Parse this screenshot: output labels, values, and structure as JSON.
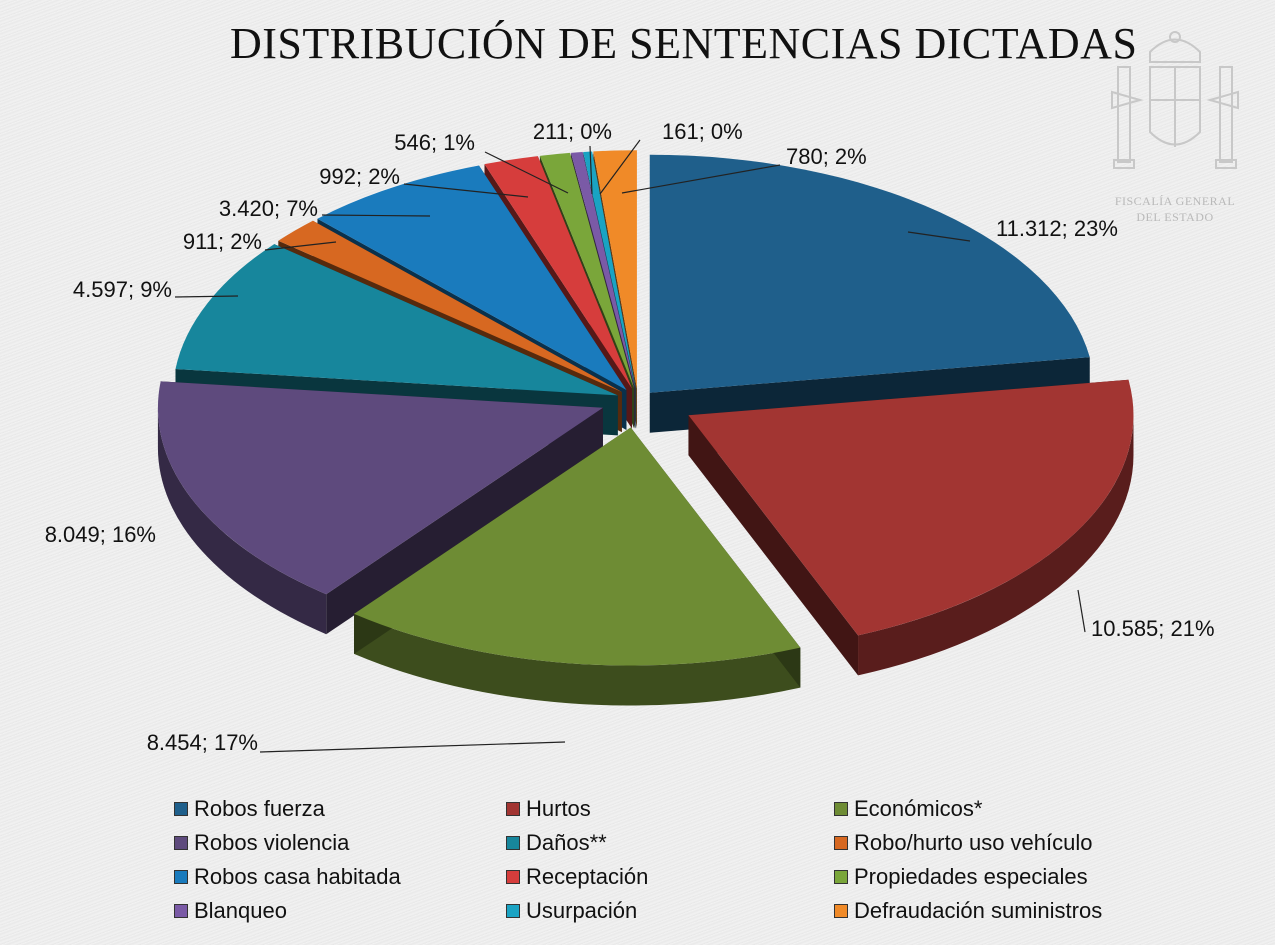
{
  "seal": {
    "line1": "FISCALÍA GENERAL",
    "line2": "DEL ESTADO"
  },
  "chart_data": {
    "type": "pie",
    "title": "DISTRIBUCIÓN DE SENTENCIAS DICTADAS",
    "legend_position": "bottom",
    "style": "3d-exploded",
    "categories": [
      "Robos fuerza",
      "Hurtos",
      "Económicos*",
      "Robos violencia",
      "Daños**",
      "Robo/hurto uso vehículo",
      "Robos casa habitada",
      "Receptación",
      "Propiedades especiales",
      "Blanqueo",
      "Usurpación",
      "Defraudación suministros"
    ],
    "values": [
      11312,
      10585,
      8454,
      8049,
      4597,
      911,
      3420,
      992,
      546,
      211,
      161,
      780
    ],
    "labels": [
      "11.312; 23%",
      "10.585; 21%",
      "8.454; 17%",
      "8.049; 16%",
      "4.597; 9%",
      "911; 2%",
      "3.420; 7%",
      "992; 2%",
      "546; 1%",
      "211; 0%",
      "161; 0%",
      "780; 2%"
    ],
    "colors": [
      "#1f5f8b",
      "#a23532",
      "#6e8c34",
      "#5e4a7d",
      "#17869c",
      "#d76821",
      "#1a7bbd",
      "#d63d3c",
      "#7aa63a",
      "#7a5aa6",
      "#1aa3c3",
      "#f08a28"
    ]
  }
}
